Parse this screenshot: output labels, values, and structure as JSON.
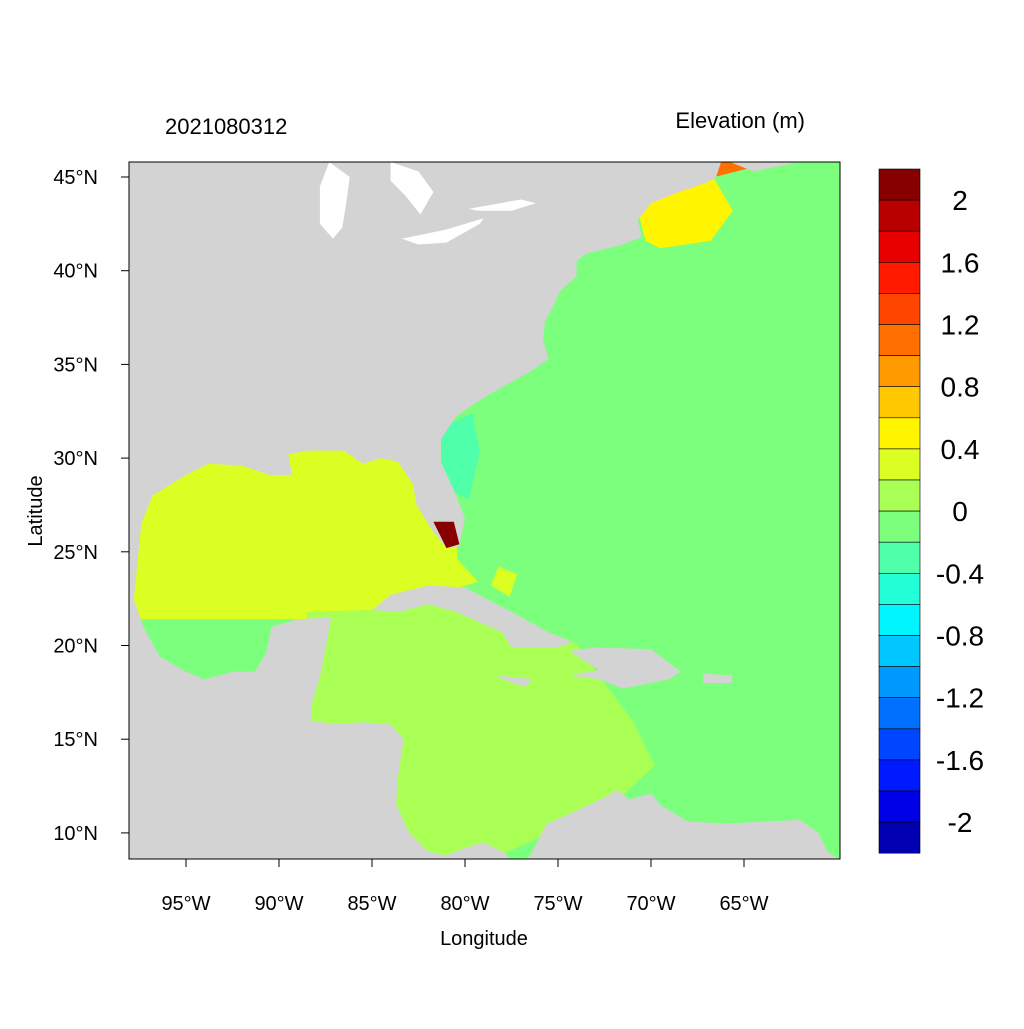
{
  "title_left": "2021080312",
  "title_right": "Elevation (m)",
  "x_axis_label": "Longitude",
  "y_axis_label": "Latitude",
  "map_extent": {
    "lon": [
      -98.1,
      -59.8
    ],
    "lat": [
      8.6,
      45.8
    ]
  },
  "lon_ticks": [
    {
      "value": -95,
      "label": "95°W"
    },
    {
      "value": -90,
      "label": "90°W"
    },
    {
      "value": -85,
      "label": "85°W"
    },
    {
      "value": -80,
      "label": "80°W"
    },
    {
      "value": -75,
      "label": "75°W"
    },
    {
      "value": -70,
      "label": "70°W"
    },
    {
      "value": -65,
      "label": "65°W"
    }
  ],
  "lat_ticks": [
    {
      "value": 45,
      "label": "45°N"
    },
    {
      "value": 40,
      "label": "40°N"
    },
    {
      "value": 35,
      "label": "35°N"
    },
    {
      "value": 30,
      "label": "30°N"
    },
    {
      "value": 25,
      "label": "25°N"
    },
    {
      "value": 20,
      "label": "20°N"
    },
    {
      "value": 15,
      "label": "15°N"
    },
    {
      "value": 10,
      "label": "10°N"
    }
  ],
  "colorbar": {
    "colors_top_to_bottom": [
      "#870000",
      "#B80000",
      "#E60000",
      "#FF1A00",
      "#FF4500",
      "#FF7000",
      "#FF9A00",
      "#FFC800",
      "#FFF500",
      "#DCFF23",
      "#AAFF55",
      "#7CFF7C",
      "#50FFAA",
      "#23FFD7",
      "#00F5FF",
      "#00C8FF",
      "#009AFF",
      "#0070FF",
      "#0045FF",
      "#001AFF",
      "#0000E6",
      "#0000B0"
    ],
    "labels": [
      {
        "value": 2,
        "label": "2"
      },
      {
        "value": 1.6,
        "label": "1.6"
      },
      {
        "value": 1.2,
        "label": "1.2"
      },
      {
        "value": 0.8,
        "label": "0.8"
      },
      {
        "value": 0.4,
        "label": "0.4"
      },
      {
        "value": 0,
        "label": "0"
      },
      {
        "value": -0.4,
        "label": "-0.4"
      },
      {
        "value": -0.8,
        "label": "-0.8"
      },
      {
        "value": -1.2,
        "label": "-1.2"
      },
      {
        "value": -1.6,
        "label": "-1.6"
      },
      {
        "value": -2,
        "label": "-2"
      }
    ],
    "level_min": -2,
    "level_max": 2,
    "level_step": 0.2
  },
  "colors": {
    "land": "#D3D3D3",
    "lakes": "#FFFFFF",
    "atlantic": "#7CFF7C",
    "gulf": "#DCFF23",
    "caribbean": "#AAFF55"
  }
}
